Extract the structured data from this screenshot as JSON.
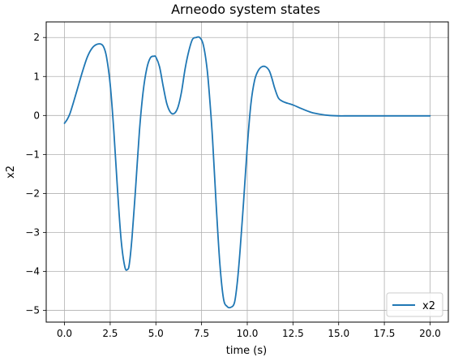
{
  "chart_data": {
    "type": "line",
    "title": "Arneodo system states",
    "xlabel": "time (s)",
    "ylabel": "x2",
    "xlim": [
      -1.0,
      21.0
    ],
    "ylim": [
      -5.3,
      2.4
    ],
    "xticks": [
      0.0,
      2.5,
      5.0,
      7.5,
      10.0,
      12.5,
      15.0,
      17.5,
      20.0
    ],
    "xtick_labels": [
      "0.0",
      "2.5",
      "5.0",
      "7.5",
      "10.0",
      "12.5",
      "15.0",
      "17.5",
      "20.0"
    ],
    "yticks": [
      -5,
      -4,
      -3,
      -2,
      -1,
      0,
      1,
      2
    ],
    "ytick_labels": [
      "−5",
      "−4",
      "−3",
      "−2",
      "−1",
      "0",
      "1",
      "2"
    ],
    "grid": true,
    "legend_position": "lower-right",
    "series": [
      {
        "name": "x2",
        "color": "#1f77b4",
        "x": [
          0.0,
          0.15,
          0.3,
          0.5,
          0.75,
          1.0,
          1.25,
          1.5,
          1.75,
          2.0,
          2.15,
          2.3,
          2.5,
          2.7,
          2.9,
          3.1,
          3.3,
          3.45,
          3.55,
          3.7,
          3.9,
          4.1,
          4.3,
          4.5,
          4.7,
          4.9,
          5.0,
          5.2,
          5.4,
          5.6,
          5.8,
          6.0,
          6.2,
          6.4,
          6.6,
          6.8,
          7.0,
          7.2,
          7.4,
          7.6,
          7.8,
          7.95,
          8.1,
          8.3,
          8.5,
          8.7,
          8.9,
          9.1,
          9.3,
          9.45,
          9.6,
          9.8,
          10.0,
          10.2,
          10.4,
          10.6,
          10.8,
          11.0,
          11.2,
          11.35,
          11.5,
          11.7,
          11.9,
          12.1,
          12.3,
          12.5,
          13.0,
          13.5,
          14.0,
          14.5,
          15.0,
          15.5,
          16.0,
          16.5,
          17.0,
          17.5,
          18.0,
          18.5,
          19.0,
          19.5,
          20.0
        ],
        "y": [
          -0.2,
          -0.1,
          0.05,
          0.35,
          0.75,
          1.15,
          1.5,
          1.72,
          1.82,
          1.83,
          1.75,
          1.5,
          0.8,
          -0.4,
          -1.9,
          -3.2,
          -3.88,
          -3.95,
          -3.8,
          -3.1,
          -1.8,
          -0.4,
          0.6,
          1.2,
          1.48,
          1.52,
          1.5,
          1.25,
          0.75,
          0.3,
          0.08,
          0.05,
          0.2,
          0.6,
          1.2,
          1.65,
          1.95,
          2.0,
          2.0,
          1.8,
          1.2,
          0.4,
          -0.6,
          -2.3,
          -3.8,
          -4.7,
          -4.9,
          -4.92,
          -4.8,
          -4.3,
          -3.5,
          -2.2,
          -0.8,
          0.3,
          0.9,
          1.15,
          1.25,
          1.25,
          1.15,
          0.95,
          0.7,
          0.45,
          0.37,
          0.33,
          0.3,
          0.27,
          0.17,
          0.08,
          0.03,
          0.0,
          -0.01,
          -0.01,
          -0.01,
          -0.01,
          -0.01,
          -0.01,
          -0.01,
          -0.01,
          -0.01,
          -0.01,
          -0.01
        ]
      }
    ]
  }
}
